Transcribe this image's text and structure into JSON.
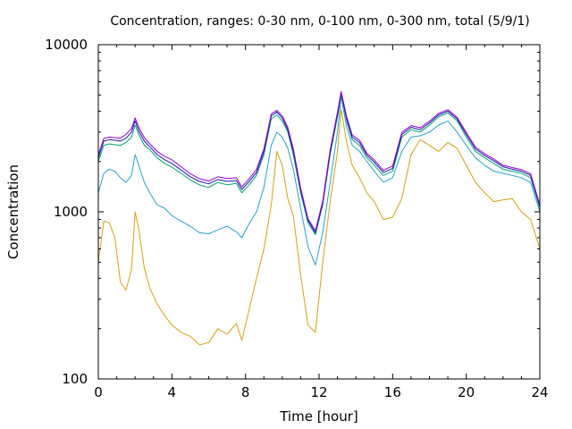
{
  "chart_data": {
    "type": "line",
    "title": "Concentration, ranges: 0-30 nm, 0-100 nm, 0-300 nm, total (5/9/1)",
    "xlabel": "Time [hour]",
    "ylabel": "Concentration",
    "xlim": [
      0,
      24
    ],
    "ylim": [
      100,
      10000
    ],
    "yscale": "log",
    "grid": false,
    "x_ticks": [
      0,
      4,
      8,
      12,
      16,
      20,
      24
    ],
    "y_ticks": [
      100,
      1000,
      10000
    ],
    "x_tick_labels": [
      "0",
      "4",
      "8",
      "12",
      "16",
      "20",
      "24"
    ],
    "y_tick_labels": [
      "100",
      "1000",
      "10000"
    ],
    "series": [
      {
        "color": "#d4a017",
        "x": [
          0,
          0.3,
          0.6,
          0.9,
          1.2,
          1.5,
          1.8,
          2.0,
          2.2,
          2.5,
          2.8,
          3.2,
          3.6,
          4.0,
          4.5,
          5.0,
          5.5,
          6.0,
          6.5,
          7.0,
          7.5,
          7.8,
          8.2,
          8.6,
          9.0,
          9.4,
          9.7,
          10.0,
          10.3,
          10.6,
          11.0,
          11.4,
          11.8,
          12.2,
          12.6,
          13.0,
          13.2,
          13.5,
          13.8,
          14.2,
          14.6,
          15.0,
          15.5,
          16.0,
          16.5,
          17.0,
          17.5,
          18.0,
          18.5,
          19.0,
          19.5,
          20.0,
          20.5,
          21.0,
          21.5,
          22.0,
          22.5,
          23.0,
          23.5,
          24.0
        ],
        "values": [
          500,
          880,
          860,
          700,
          380,
          340,
          450,
          1000,
          790,
          460,
          350,
          280,
          240,
          210,
          190,
          180,
          160,
          165,
          200,
          185,
          215,
          170,
          260,
          400,
          600,
          1100,
          2300,
          1900,
          1200,
          950,
          420,
          210,
          190,
          500,
          1150,
          2300,
          4100,
          2600,
          1900,
          1600,
          1300,
          1150,
          900,
          930,
          1200,
          2200,
          2700,
          2500,
          2300,
          2600,
          2400,
          1900,
          1500,
          1300,
          1150,
          1180,
          1200,
          1000,
          900,
          600
        ]
      },
      {
        "color": "#2aa0c8",
        "x": [
          0,
          0.3,
          0.6,
          0.9,
          1.2,
          1.5,
          1.8,
          2.0,
          2.2,
          2.5,
          2.8,
          3.2,
          3.6,
          4.0,
          4.5,
          5.0,
          5.5,
          6.0,
          6.5,
          7.0,
          7.5,
          7.8,
          8.2,
          8.6,
          9.0,
          9.4,
          9.7,
          10.0,
          10.3,
          10.6,
          11.0,
          11.4,
          11.8,
          12.2,
          12.6,
          13.0,
          13.2,
          13.5,
          13.8,
          14.2,
          14.6,
          15.0,
          15.5,
          16.0,
          16.5,
          17.0,
          17.5,
          18.0,
          18.5,
          19.0,
          19.5,
          20.0,
          20.5,
          21.0,
          21.5,
          22.0,
          22.5,
          23.0,
          23.5,
          24.0
        ],
        "values": [
          1300,
          1700,
          1800,
          1750,
          1600,
          1500,
          1650,
          2200,
          1900,
          1500,
          1300,
          1100,
          1050,
          950,
          880,
          820,
          750,
          740,
          780,
          820,
          760,
          700,
          850,
          1000,
          1400,
          2500,
          3000,
          2800,
          2400,
          1800,
          1050,
          620,
          480,
          750,
          1500,
          3000,
          4900,
          3200,
          2500,
          2300,
          2000,
          1750,
          1500,
          1600,
          2300,
          2800,
          2850,
          3000,
          3300,
          3500,
          3000,
          2500,
          2100,
          1900,
          1750,
          1700,
          1650,
          1600,
          1500,
          1000
        ]
      },
      {
        "color": "#009e73",
        "x": [
          0,
          0.3,
          0.6,
          0.9,
          1.2,
          1.5,
          1.8,
          2.0,
          2.2,
          2.5,
          2.8,
          3.2,
          3.6,
          4.0,
          4.5,
          5.0,
          5.5,
          6.0,
          6.5,
          7.0,
          7.5,
          7.8,
          8.2,
          8.6,
          9.0,
          9.4,
          9.7,
          10.0,
          10.3,
          10.6,
          11.0,
          11.4,
          11.8,
          12.2,
          12.6,
          13.0,
          13.2,
          13.5,
          13.8,
          14.2,
          14.6,
          15.0,
          15.5,
          16.0,
          16.5,
          17.0,
          17.5,
          18.0,
          18.5,
          19.0,
          19.5,
          20.0,
          20.5,
          21.0,
          21.5,
          22.0,
          22.5,
          23.0,
          23.5,
          24.0
        ],
        "values": [
          2000,
          2500,
          2550,
          2520,
          2500,
          2600,
          2800,
          3300,
          2900,
          2500,
          2350,
          2100,
          1950,
          1850,
          1700,
          1550,
          1450,
          1400,
          1500,
          1450,
          1480,
          1300,
          1450,
          1650,
          2200,
          3600,
          3800,
          3500,
          3000,
          2200,
          1300,
          860,
          730,
          1100,
          2200,
          3700,
          5000,
          3500,
          2700,
          2500,
          2100,
          1900,
          1650,
          1750,
          2800,
          3100,
          3000,
          3300,
          3700,
          3900,
          3500,
          2800,
          2300,
          2100,
          1950,
          1800,
          1750,
          1700,
          1600,
          1050
        ]
      },
      {
        "color": "#1a1aa0",
        "x": [
          0,
          0.3,
          0.6,
          0.9,
          1.2,
          1.5,
          1.8,
          2.0,
          2.2,
          2.5,
          2.8,
          3.2,
          3.6,
          4.0,
          4.5,
          5.0,
          5.5,
          6.0,
          6.5,
          7.0,
          7.5,
          7.8,
          8.2,
          8.6,
          9.0,
          9.4,
          9.7,
          10.0,
          10.3,
          10.6,
          11.0,
          11.4,
          11.8,
          12.2,
          12.6,
          13.0,
          13.2,
          13.5,
          13.8,
          14.2,
          14.6,
          15.0,
          15.5,
          16.0,
          16.5,
          17.0,
          17.5,
          18.0,
          18.5,
          19.0,
          19.5,
          20.0,
          20.5,
          21.0,
          21.5,
          22.0,
          22.5,
          23.0,
          23.5,
          24.0
        ],
        "values": [
          2100,
          2650,
          2700,
          2680,
          2650,
          2750,
          3000,
          3500,
          3050,
          2650,
          2450,
          2200,
          2050,
          1950,
          1780,
          1620,
          1520,
          1470,
          1560,
          1520,
          1540,
          1360,
          1520,
          1720,
          2300,
          3750,
          3950,
          3650,
          3100,
          2300,
          1350,
          890,
          750,
          1130,
          2280,
          3850,
          5150,
          3620,
          2800,
          2600,
          2180,
          1980,
          1720,
          1820,
          2900,
          3200,
          3100,
          3400,
          3800,
          4000,
          3600,
          2900,
          2380,
          2170,
          2020,
          1860,
          1800,
          1750,
          1650,
          1080
        ]
      },
      {
        "color": "#9400d3",
        "x": [
          0,
          0.3,
          0.6,
          0.9,
          1.2,
          1.5,
          1.8,
          2.0,
          2.2,
          2.5,
          2.8,
          3.2,
          3.6,
          4.0,
          4.5,
          5.0,
          5.5,
          6.0,
          6.5,
          7.0,
          7.5,
          7.8,
          8.2,
          8.6,
          9.0,
          9.4,
          9.7,
          10.0,
          10.3,
          10.6,
          11.0,
          11.4,
          11.8,
          12.2,
          12.6,
          13.0,
          13.2,
          13.5,
          13.8,
          14.2,
          14.6,
          15.0,
          15.5,
          16.0,
          16.5,
          17.0,
          17.5,
          18.0,
          18.5,
          19.0,
          19.5,
          20.0,
          20.5,
          21.0,
          21.5,
          22.0,
          22.5,
          23.0,
          23.5,
          24.0
        ],
        "values": [
          2200,
          2750,
          2800,
          2780,
          2760,
          2900,
          3150,
          3650,
          3200,
          2780,
          2550,
          2300,
          2150,
          2050,
          1860,
          1690,
          1580,
          1530,
          1620,
          1580,
          1600,
          1410,
          1580,
          1790,
          2380,
          3850,
          4050,
          3750,
          3200,
          2380,
          1390,
          910,
          770,
          1160,
          2350,
          3950,
          5250,
          3700,
          2880,
          2680,
          2240,
          2040,
          1770,
          1880,
          2980,
          3280,
          3180,
          3480,
          3880,
          4080,
          3680,
          2980,
          2440,
          2220,
          2070,
          1900,
          1840,
          1790,
          1690,
          1100
        ]
      }
    ]
  }
}
